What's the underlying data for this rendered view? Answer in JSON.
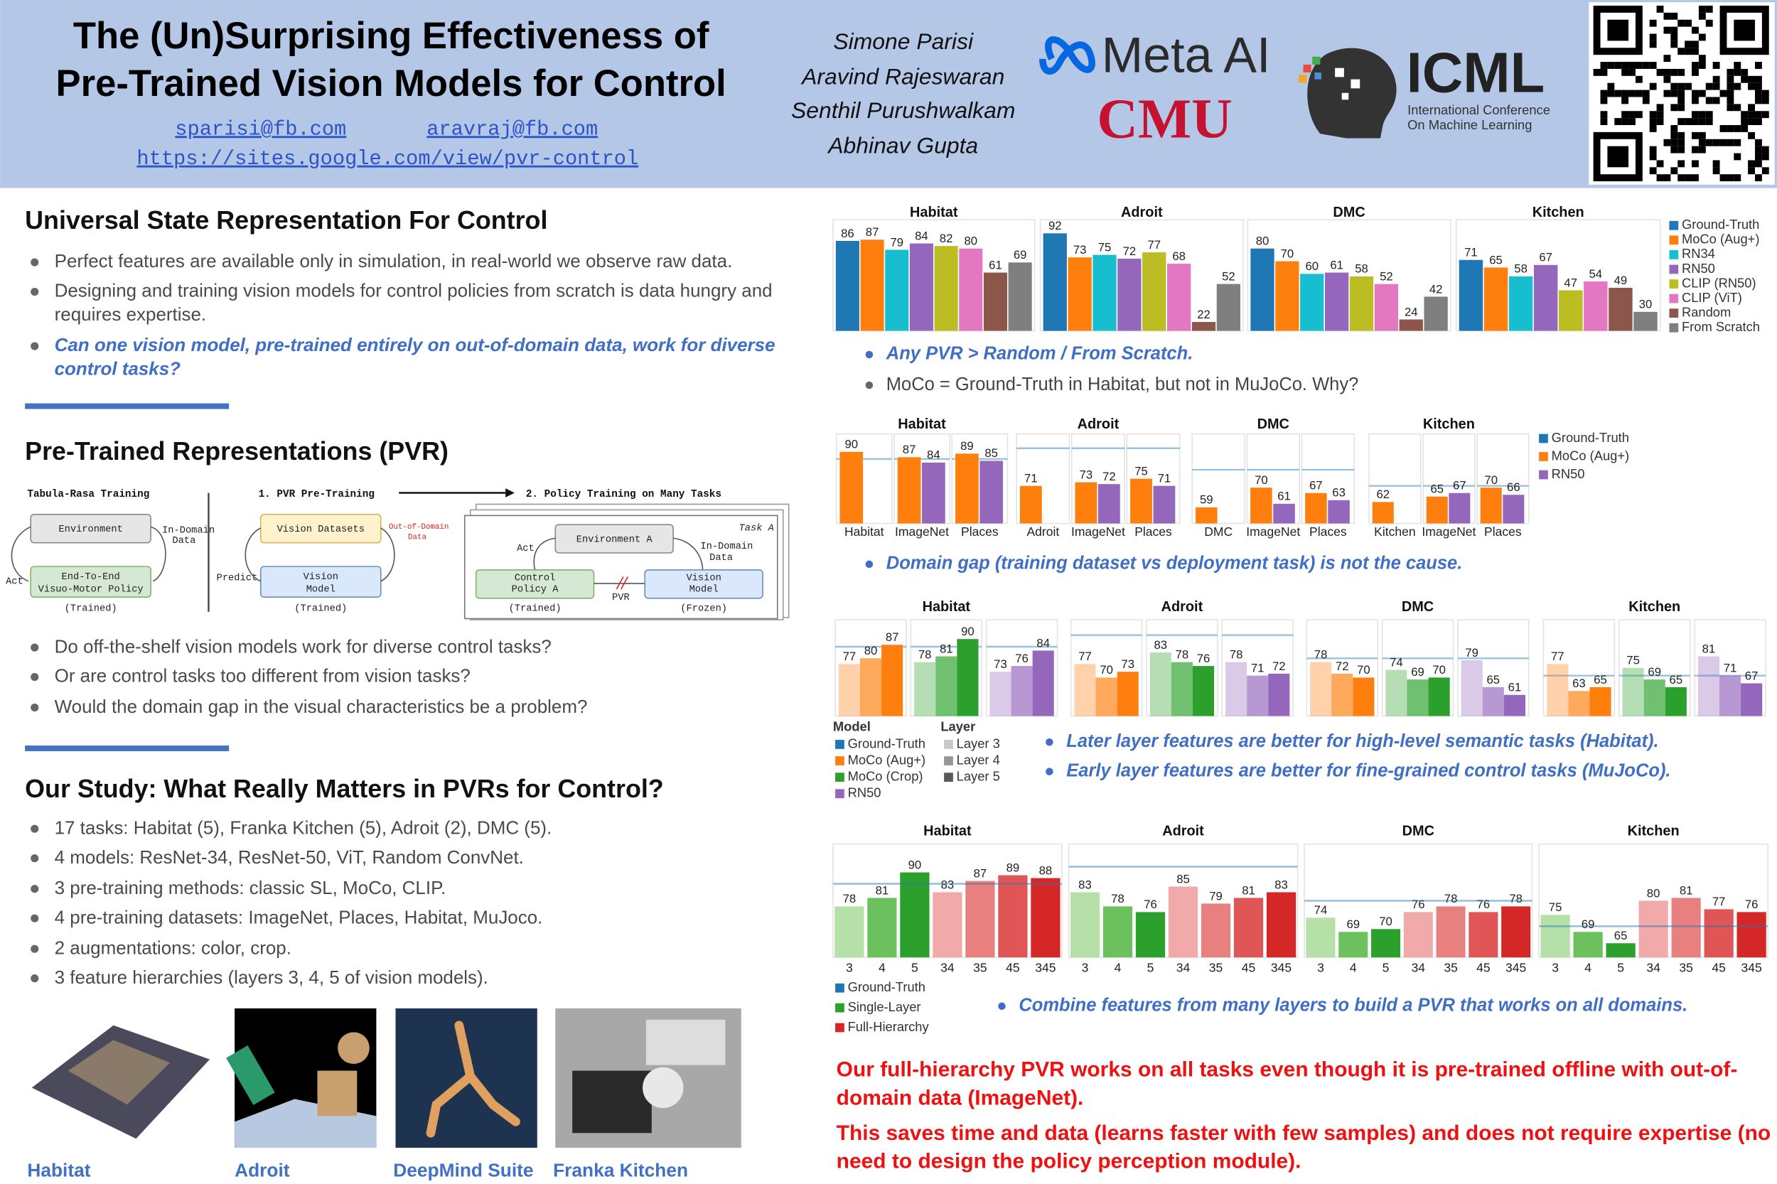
{
  "header": {
    "title": [
      "The (Un)Surprising Effectiveness of",
      "Pre-Trained Vision Models for Control"
    ],
    "emails": [
      "sparisi@fb.com",
      "aravraj@fb.com"
    ],
    "url": "https://sites.google.com/view/pvr-control",
    "authors": [
      "Simone Parisi",
      "Aravind Rajeswaran",
      "Senthil Purushwalkam",
      "Abhinav Gupta"
    ],
    "logos": {
      "meta": "Meta AI",
      "cmu": "CMU",
      "icml": "ICML",
      "icml_subtitle": [
        "International Conference",
        "On Machine Learning"
      ]
    }
  },
  "sections": [
    {
      "heading": "Universal State Representation For Control",
      "bullets": [
        {
          "text": "Perfect features are available only in simulation, in real-world we observe raw data."
        },
        {
          "text": "Designing and training vision models for control policies from scratch is data hungry and requires expertise."
        },
        {
          "text": "Can one vision model, pre-trained entirely on out-of-domain data, work for diverse control tasks?",
          "emphasis": true
        }
      ]
    },
    {
      "heading": "Pre-Trained Representations (PVR)",
      "bullets": [
        {
          "text": "Do off-the-shelf vision models work for diverse control tasks?"
        },
        {
          "text": "Or are control tasks too different from vision tasks?"
        },
        {
          "text": "Would the domain gap in the visual characteristics be a problem?"
        }
      ]
    },
    {
      "heading": "Our Study: What Really Matters in PVRs for Control?",
      "bullets": [
        {
          "text": "17 tasks: Habitat (5), Franka Kitchen (5),  Adroit (2), DMC (5)."
        },
        {
          "text": "4 models: ResNet-34, ResNet-50, ViT, Random ConvNet."
        },
        {
          "text": "3 pre-training methods: classic SL, MoCo, CLIP."
        },
        {
          "text": "4 pre-training datasets: ImageNet, Places, Habitat, MuJoco."
        },
        {
          "text": "2 augmentations: color, crop."
        },
        {
          "text": "3 feature hierarchies (layers 3, 4, 5 of vision models)."
        }
      ]
    }
  ],
  "diagram": {
    "tabula_rasa": {
      "title": "Tabula-Rasa Training",
      "environment": "Environment",
      "data_label": [
        "In-Domain",
        "Data"
      ],
      "act": "Act",
      "policy": [
        "End-To-End",
        "Visuo-Motor Policy"
      ],
      "status": "(Trained)"
    },
    "pretraining": {
      "title": "1. PVR Pre-Training",
      "datasets": "Vision Datasets",
      "data_label": [
        "Out-of-Domain",
        "Data"
      ],
      "predict": "Predict",
      "model": [
        "Vision",
        "Model"
      ],
      "status": "(Trained)"
    },
    "policy_training": {
      "title": "2. Policy Training on Many Tasks",
      "task": "Task A",
      "environment": "Environment A",
      "act": "Act",
      "data_label": [
        "In-Domain",
        "Data"
      ],
      "policy": [
        "Control",
        "Policy A"
      ],
      "link": "PVR",
      "model": [
        "Vision",
        "Model"
      ],
      "policy_status": "(Trained)",
      "model_status": "(Frozen)"
    }
  },
  "figures": [
    "Habitat",
    "Adroit",
    "DeepMind Suite",
    "Franka Kitchen"
  ],
  "notes": [
    {
      "text": "Any PVR > Random / From Scratch.",
      "emphasis": true
    },
    {
      "text": "MoCo = Ground-Truth in Habitat, but not in MuJoCo. Why?"
    },
    {
      "text": "Domain gap (training dataset vs deployment task) is not the cause.",
      "emphasis": true
    },
    {
      "text": "Later layer features are better for high-level semantic tasks (Habitat).",
      "emphasis": true
    },
    {
      "text": "Early layer features are better for fine-grained control tasks (MuJoCo).",
      "emphasis": true
    },
    {
      "text": "Combine features from many layers to build a PVR that works on all domains.",
      "emphasis": true
    }
  ],
  "conclusions": [
    "Our full-hierarchy PVR works on all tasks even though it is pre-trained offline with out-of-domain data (ImageNet).",
    "This saves time and data (learns faster with few samples) and does not require expertise (no need to design the policy perception module)."
  ],
  "chart_data": [
    {
      "type": "bar",
      "categories": [
        "Habitat",
        "Adroit",
        "DMC",
        "Kitchen"
      ],
      "ylim": [
        15,
        100
      ],
      "series": [
        {
          "name": "Ground-Truth",
          "color": "#1f77b4",
          "values": [
            86,
            92,
            80,
            71
          ]
        },
        {
          "name": "MoCo (Aug+)",
          "color": "#ff7f0e",
          "values": [
            87,
            73,
            70,
            65
          ]
        },
        {
          "name": "RN34",
          "color": "#17becf",
          "values": [
            79,
            75,
            60,
            58
          ]
        },
        {
          "name": "RN50",
          "color": "#9467bd",
          "values": [
            84,
            72,
            61,
            67
          ]
        },
        {
          "name": "CLIP (RN50)",
          "color": "#bcbd22",
          "values": [
            82,
            77,
            58,
            47
          ]
        },
        {
          "name": "CLIP (ViT)",
          "color": "#e377c2",
          "values": [
            80,
            68,
            52,
            54
          ]
        },
        {
          "name": "Random",
          "color": "#8c564b",
          "values": [
            61,
            22,
            24,
            49
          ]
        },
        {
          "name": "From Scratch",
          "color": "#7f7f7f",
          "values": [
            69,
            52,
            42,
            30
          ]
        }
      ]
    },
    {
      "type": "grouped-bar",
      "ylim": [
        50,
        100
      ],
      "series": [
        {
          "name": "Ground-Truth",
          "color": "#1f77b4"
        },
        {
          "name": "MoCo (Aug+)",
          "color": "#ff7f0e"
        },
        {
          "name": "RN50",
          "color": "#9467bd"
        }
      ],
      "panels": [
        {
          "title": "Habitat",
          "categories": [
            "Habitat",
            "ImageNet",
            "Places"
          ],
          "reference": 86,
          "values": [
            [
              90,
              87,
              89
            ],
            [
              null,
              84,
              85
            ]
          ]
        },
        {
          "title": "Adroit",
          "categories": [
            "Adroit",
            "ImageNet",
            "Places"
          ],
          "reference": 92,
          "values": [
            [
              71,
              73,
              75
            ],
            [
              null,
              72,
              71
            ]
          ]
        },
        {
          "title": "DMC",
          "categories": [
            "DMC",
            "ImageNet",
            "Places"
          ],
          "reference": 80,
          "values": [
            [
              59,
              70,
              67
            ],
            [
              null,
              61,
              63
            ]
          ]
        },
        {
          "title": "Kitchen",
          "categories": [
            "Kitchen",
            "ImageNet",
            "Places"
          ],
          "reference": 71,
          "values": [
            [
              62,
              65,
              70
            ],
            [
              null,
              67,
              66
            ]
          ]
        }
      ]
    },
    {
      "type": "layer-bar",
      "ylim": [
        50,
        100
      ],
      "model_title": "Model",
      "layer_title": "Layer",
      "reference": {
        "name": "Ground-Truth",
        "color": "#1f77b4"
      },
      "series": [
        {
          "name": "MoCo (Aug+)",
          "color": "#ff7f0e"
        },
        {
          "name": "MoCo (Crop)",
          "color": "#2ca02c"
        },
        {
          "name": "RN50",
          "color": "#9467bd"
        }
      ],
      "layers": [
        {
          "name": "Layer 3",
          "color": "#c8c8c8"
        },
        {
          "name": "Layer 4",
          "color": "#969696"
        },
        {
          "name": "Layer 5",
          "color": "#5a5a5a"
        }
      ],
      "panels": [
        {
          "title": "Habitat",
          "reference": 86,
          "values": [
            [
              77,
              80,
              87
            ],
            [
              78,
              81,
              90
            ],
            [
              73,
              76,
              84
            ]
          ]
        },
        {
          "title": "Adroit",
          "reference": 92,
          "values": [
            [
              77,
              70,
              73
            ],
            [
              83,
              78,
              76
            ],
            [
              78,
              71,
              72
            ]
          ]
        },
        {
          "title": "DMC",
          "reference": 80,
          "values": [
            [
              78,
              72,
              70
            ],
            [
              74,
              69,
              70
            ],
            [
              79,
              65,
              61
            ]
          ]
        },
        {
          "title": "Kitchen",
          "reference": 71,
          "values": [
            [
              77,
              63,
              65
            ],
            [
              75,
              69,
              65
            ],
            [
              81,
              71,
              67
            ]
          ]
        }
      ]
    },
    {
      "type": "panel-bar",
      "ylim": [
        60,
        100
      ],
      "categories": [
        "3",
        "4",
        "5",
        "34",
        "35",
        "45",
        "345"
      ],
      "colors": [
        "#b5e0a8",
        "#6cc05e",
        "#2ca02c",
        "#f2a9a9",
        "#e98080",
        "#e05555",
        "#d62728"
      ],
      "series": [
        {
          "name": "Ground-Truth",
          "color": "#1f77b4"
        },
        {
          "name": "Single-Layer",
          "color": "#2ca02c"
        },
        {
          "name": "Full-Hierarchy",
          "color": "#d62728"
        }
      ],
      "panels": [
        {
          "title": "Habitat",
          "reference": 86,
          "values": [
            78,
            81,
            90,
            83,
            87,
            89,
            88
          ]
        },
        {
          "title": "Adroit",
          "reference": 92,
          "values": [
            83,
            78,
            76,
            85,
            79,
            81,
            83
          ]
        },
        {
          "title": "DMC",
          "reference": 80,
          "values": [
            74,
            69,
            70,
            76,
            78,
            76,
            78
          ]
        },
        {
          "title": "Kitchen",
          "reference": 71,
          "values": [
            75,
            69,
            65,
            80,
            81,
            77,
            76
          ]
        }
      ]
    }
  ]
}
